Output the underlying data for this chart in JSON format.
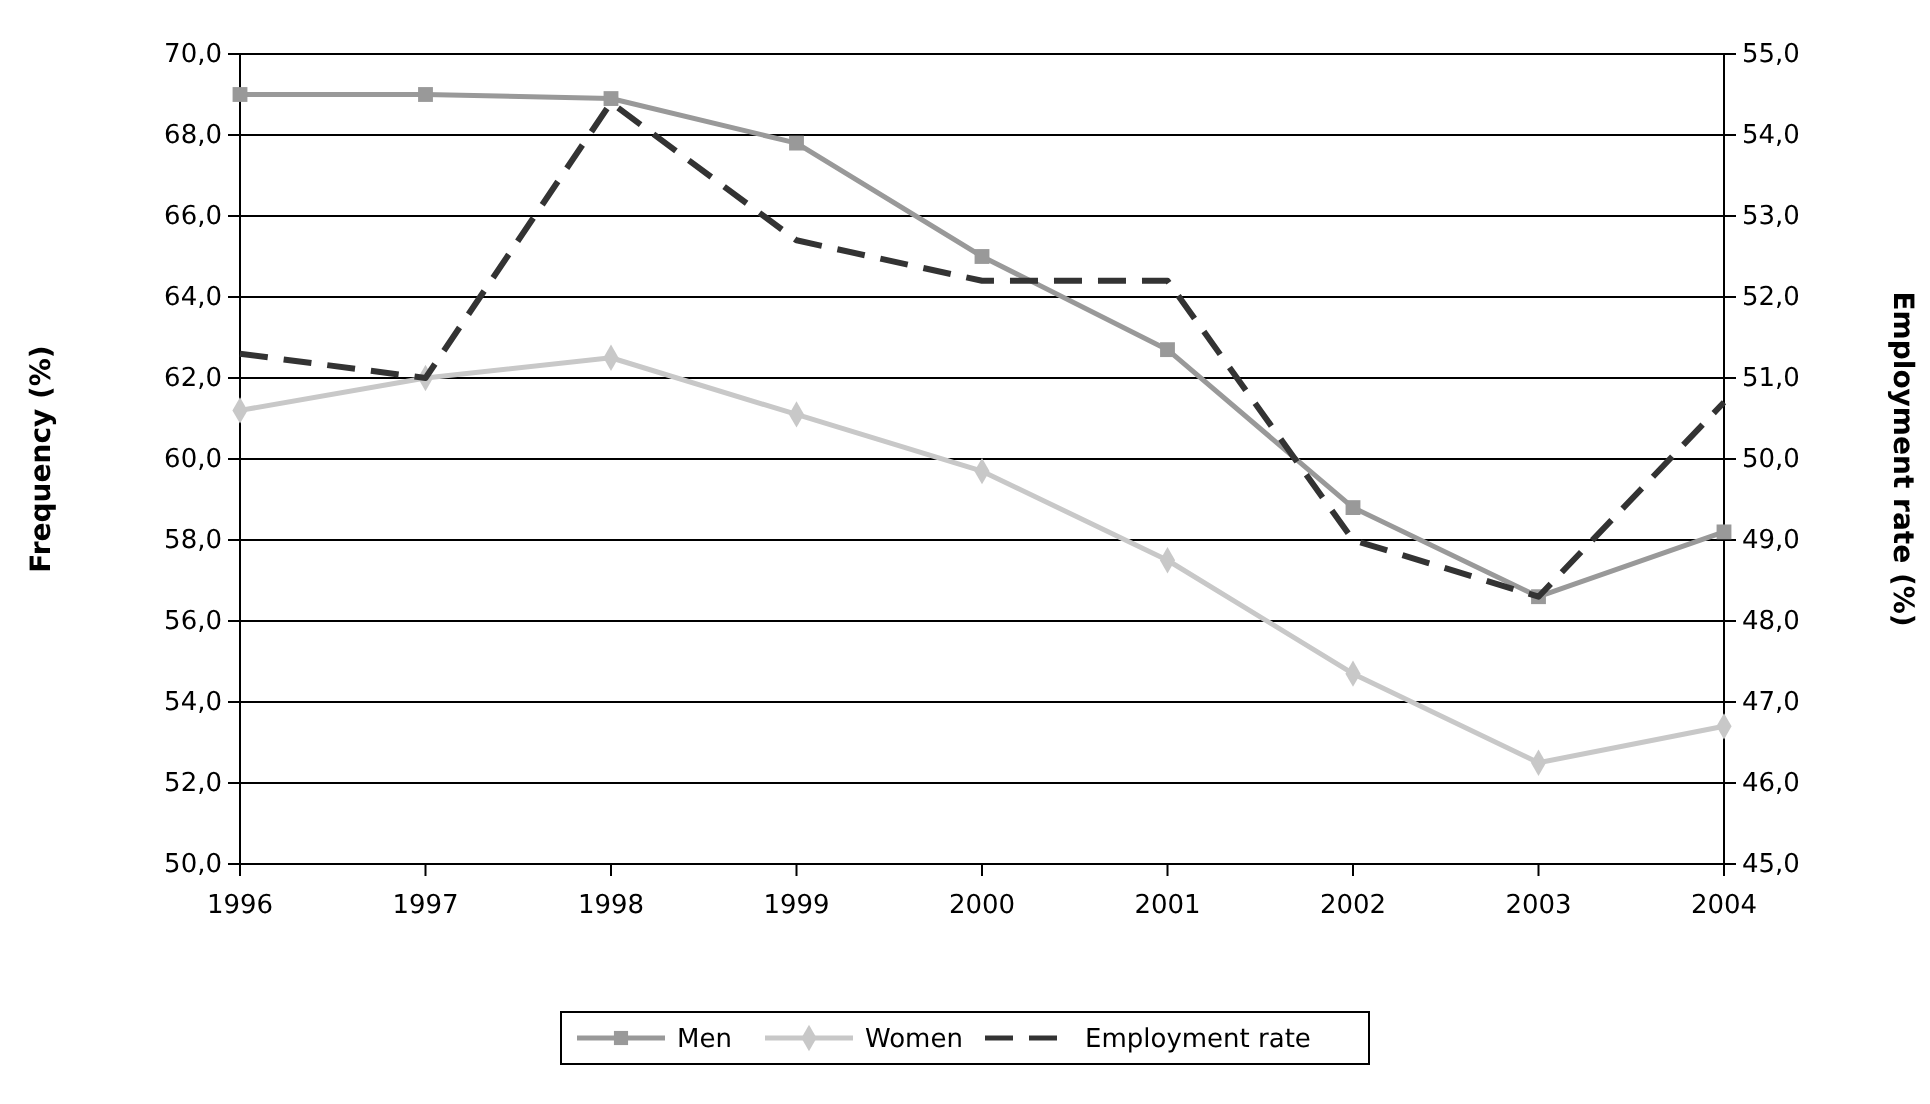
{
  "chart_data": {
    "type": "line",
    "xlabel": null,
    "ylabel": "Frequency  (%)",
    "y2label": "Employment rate  (%)",
    "x": [
      1996,
      1997,
      1998,
      1999,
      2000,
      2001,
      2002,
      2003,
      2004
    ],
    "xlim": [
      1996,
      2004
    ],
    "xticks": [
      1996,
      1997,
      1998,
      1999,
      2000,
      2001,
      2002,
      2003,
      2004
    ],
    "ylim": [
      50,
      70
    ],
    "yticks": [
      {
        "value": 50,
        "label": "50,0"
      },
      {
        "value": 52,
        "label": "52,0"
      },
      {
        "value": 54,
        "label": "54,0"
      },
      {
        "value": 56,
        "label": "56,0"
      },
      {
        "value": 58,
        "label": "58,0"
      },
      {
        "value": 60,
        "label": "60,0"
      },
      {
        "value": 62,
        "label": "62,0"
      },
      {
        "value": 64,
        "label": "64,0"
      },
      {
        "value": 66,
        "label": "66,0"
      },
      {
        "value": 68,
        "label": "68,0"
      },
      {
        "value": 70,
        "label": "70,0"
      }
    ],
    "y2lim": [
      45,
      55
    ],
    "y2ticks": [
      {
        "value": 45,
        "label": "45,0"
      },
      {
        "value": 46,
        "label": "46,0"
      },
      {
        "value": 47,
        "label": "47,0"
      },
      {
        "value": 48,
        "label": "48,0"
      },
      {
        "value": 49,
        "label": "49,0"
      },
      {
        "value": 50,
        "label": "50,0"
      },
      {
        "value": 51,
        "label": "51,0"
      },
      {
        "value": 52,
        "label": "52,0"
      },
      {
        "value": 53,
        "label": "53,0"
      },
      {
        "value": 54,
        "label": "54,0"
      },
      {
        "value": 55,
        "label": "55,0"
      }
    ],
    "grid": "y",
    "legend": "bottom",
    "series": [
      {
        "name": "Men",
        "color": "#999999",
        "marker": "square",
        "line_style": "solid",
        "values": [
          69.0,
          69.0,
          68.9,
          67.8,
          65.0,
          62.7,
          58.8,
          56.6,
          58.2
        ]
      },
      {
        "name": "Women",
        "color": "#c8c8c8",
        "marker": "diamond",
        "line_style": "solid",
        "values": [
          61.2,
          62.0,
          62.5,
          61.1,
          59.7,
          57.5,
          54.7,
          52.5,
          53.4
        ]
      },
      {
        "name": "Employment rate",
        "color": "#333333",
        "marker": "none",
        "line_style": "dashed",
        "axis": "y2",
        "values": [
          51.3,
          51.0,
          54.4,
          52.7,
          52.2,
          52.2,
          49.0,
          48.3,
          50.7
        ]
      }
    ]
  }
}
